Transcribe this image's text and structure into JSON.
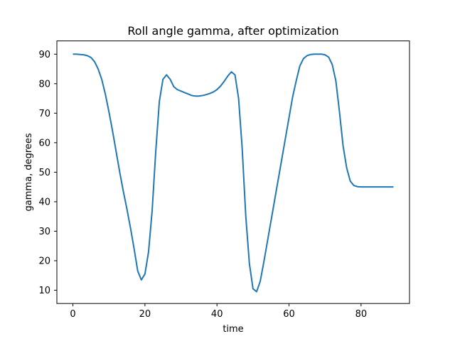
{
  "chart_data": {
    "type": "line",
    "title": "Roll angle gamma, after optimization",
    "xlabel": "time",
    "ylabel": "gamma, degrees",
    "xlim": [
      -4.45,
      93.45
    ],
    "ylim": [
      5.5,
      94.5
    ],
    "xticks": [
      0,
      20,
      40,
      60,
      80
    ],
    "yticks": [
      10,
      20,
      30,
      40,
      50,
      60,
      70,
      80,
      90
    ],
    "grid": false,
    "color": "#1f77b4",
    "series": [
      {
        "x": [
          0,
          1,
          2,
          3,
          4,
          5,
          6,
          7,
          8,
          9,
          10,
          11,
          12,
          13,
          14,
          15,
          16,
          17,
          18,
          19,
          20,
          21,
          22,
          23,
          24,
          25,
          26,
          27,
          28,
          29,
          30,
          31,
          32,
          33,
          34,
          35,
          36,
          37,
          38,
          39,
          40,
          41,
          42,
          43,
          44,
          45,
          46,
          47,
          48,
          49,
          50,
          51,
          52,
          53,
          54,
          55,
          56,
          57,
          58,
          59,
          60,
          61,
          62,
          63,
          64,
          65,
          66,
          67,
          68,
          69,
          70,
          71,
          72,
          73,
          74,
          75,
          76,
          77,
          78,
          79,
          80,
          81,
          82,
          83,
          84,
          85,
          86,
          87,
          88,
          89
        ],
        "values": [
          90,
          90,
          89.9,
          89.8,
          89.5,
          88.9,
          87.5,
          85,
          81.5,
          76.5,
          70.5,
          64,
          57,
          50,
          43.5,
          37.5,
          31,
          24,
          16.5,
          13.5,
          15.5,
          23,
          37,
          57,
          74,
          81.5,
          83,
          81.5,
          79,
          78,
          77.5,
          77,
          76.5,
          76,
          75.8,
          75.8,
          76,
          76.3,
          76.7,
          77.2,
          78,
          79.2,
          80.8,
          82.6,
          84,
          83,
          75,
          58,
          35,
          19,
          10.5,
          9.5,
          13,
          19.5,
          26.5,
          33.5,
          40.5,
          47.5,
          54.5,
          61.5,
          68.5,
          75.5,
          81,
          86,
          88.5,
          89.5,
          89.9,
          90,
          90,
          90,
          89.8,
          89,
          86.5,
          81,
          70.5,
          59,
          51.5,
          47,
          45.5,
          45.1,
          45,
          45,
          45,
          45,
          45,
          45,
          45,
          45,
          45,
          45
        ]
      }
    ]
  }
}
